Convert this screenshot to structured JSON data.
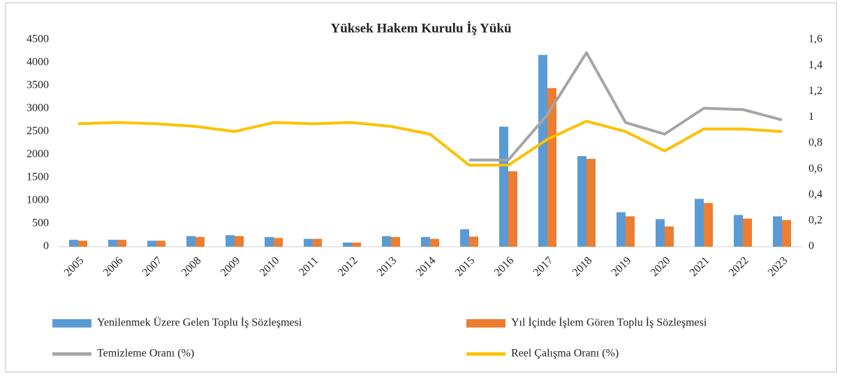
{
  "chart_data": {
    "type": "bar-line",
    "title": "Yüksek Hakem Kurulu  İş Yükü",
    "categories": [
      "2005",
      "2006",
      "2007",
      "2008",
      "2009",
      "2010",
      "2011",
      "2012",
      "2013",
      "2014",
      "2015",
      "2016",
      "2017",
      "2018",
      "2019",
      "2020",
      "2021",
      "2022",
      "2023"
    ],
    "series": [
      {
        "name": "Yenilenmek Üzere Gelen Toplu İş Sözleşmesi",
        "type": "bar",
        "color": "#5b9bd5",
        "values": [
          150,
          150,
          130,
          230,
          250,
          210,
          170,
          90,
          230,
          210,
          380,
          2610,
          4170,
          1970,
          750,
          600,
          1040,
          690,
          660
        ]
      },
      {
        "name": "Yıl İçinde İşlem Gören Toplu İş Sözleşmesi",
        "type": "bar",
        "color": "#ed7d31",
        "values": [
          130,
          150,
          130,
          210,
          230,
          190,
          170,
          90,
          210,
          170,
          220,
          1640,
          3450,
          1910,
          660,
          440,
          950,
          610,
          580
        ]
      },
      {
        "name": "Temizleme Oranı (%)",
        "type": "line",
        "axis": "y2",
        "color": "#a5a5a5",
        "values": [
          null,
          null,
          null,
          null,
          null,
          null,
          null,
          null,
          null,
          null,
          0.67,
          0.67,
          1.02,
          1.5,
          0.96,
          0.87,
          1.07,
          1.06,
          0.98
        ]
      },
      {
        "name": "Reel Çalışma Oranı (%)",
        "type": "line",
        "axis": "y2",
        "color": "#ffc000",
        "values": [
          0.95,
          0.96,
          0.95,
          0.93,
          0.89,
          0.96,
          0.95,
          0.96,
          0.93,
          0.87,
          0.63,
          0.63,
          0.83,
          0.97,
          0.89,
          0.74,
          0.91,
          0.91,
          0.89
        ]
      }
    ],
    "ylim": [
      0,
      4500
    ],
    "yticks": [
      0,
      500,
      1000,
      1500,
      2000,
      2500,
      3000,
      3500,
      4000,
      4500
    ],
    "y2lim": [
      0,
      1.6
    ],
    "y2ticks": [
      0,
      {
        "value": 0.2,
        "label": "0,2"
      },
      {
        "value": 0.4,
        "label": "0,4"
      },
      {
        "value": 0.6,
        "label": "0,6"
      },
      {
        "value": 0.8,
        "label": "0,8"
      },
      1,
      {
        "value": 1.2,
        "label": "1,2"
      },
      {
        "value": 1.4,
        "label": "1,4"
      },
      {
        "value": 1.6,
        "label": "1,6"
      }
    ],
    "legend": "bottom"
  }
}
